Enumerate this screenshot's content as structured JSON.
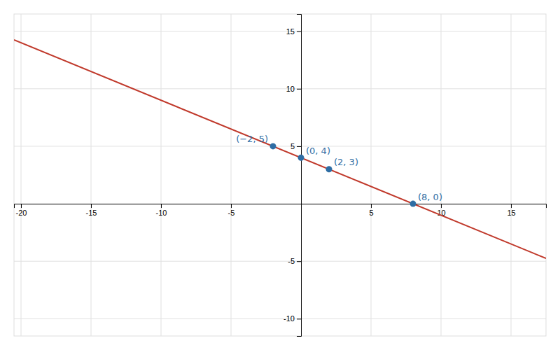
{
  "chart_data": {
    "type": "line",
    "xlim": [
      -20.5,
      17.5
    ],
    "ylim": [
      -11.5,
      16.5
    ],
    "xticks": [
      -20,
      -15,
      -10,
      -5,
      5,
      10,
      15
    ],
    "yticks": [
      -10,
      -5,
      5,
      10,
      15
    ],
    "grid": true,
    "series": [
      {
        "type": "line",
        "color": "#c0392b",
        "x": [
          -20.5,
          17.5
        ],
        "values": [
          14.25,
          -4.75
        ]
      },
      {
        "type": "scatter",
        "color": "#2e6da4",
        "marker": "circle",
        "x": [
          -2,
          0,
          2,
          8
        ],
        "values": [
          5,
          4,
          3,
          0
        ]
      }
    ],
    "annotations": [
      {
        "text": "(−2, 5)",
        "x": -2,
        "y": 5
      },
      {
        "text": "(0, 4)",
        "x": 0,
        "y": 4
      },
      {
        "text": "(2, 3)",
        "x": 2,
        "y": 3
      },
      {
        "text": "(8, 0)",
        "x": 8,
        "y": 0
      }
    ]
  }
}
